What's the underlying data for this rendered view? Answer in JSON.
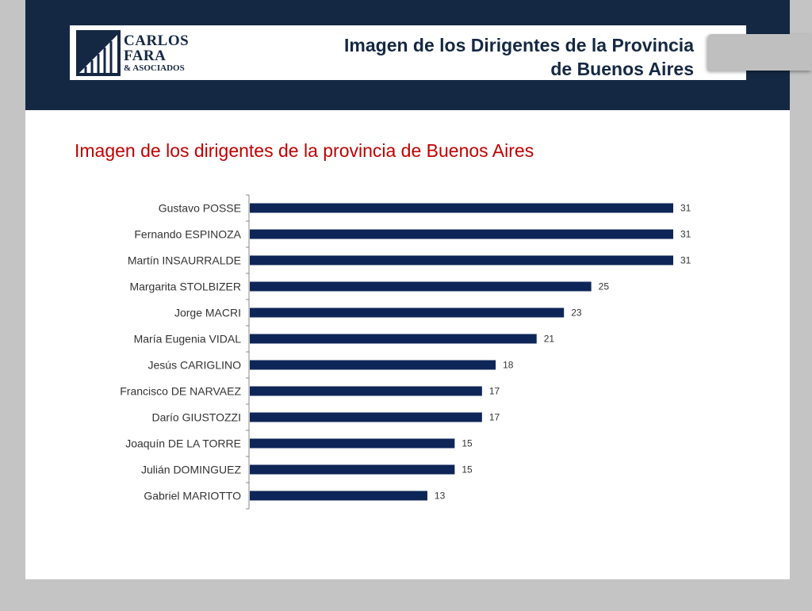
{
  "header": {
    "logo": {
      "line1": "CARLOS",
      "line2": "FARA",
      "line3": "& ASOCIADOS"
    },
    "title_line1": "Imagen de los Dirigentes de la Provincia",
    "title_line2": "de Buenos Aires"
  },
  "subtitle": "Imagen de los dirigentes de la provincia de Buenos Aires",
  "colors": {
    "header": "#152843",
    "bar": "#0e2557",
    "subtitle": "#c00000"
  },
  "chart_data": {
    "type": "bar",
    "orientation": "horizontal",
    "categories": [
      "Gustavo POSSE",
      "Fernando ESPINOZA",
      "Martín INSAURRALDE",
      "Margarita STOLBIZER",
      "Jorge MACRI",
      "María Eugenia VIDAL",
      "Jesús CARIGLINO",
      "Francisco DE NARVAEZ",
      "Darío GIUSTOZZI",
      "Joaquín DE LA TORRE",
      "Julián DOMINGUEZ",
      "Gabriel MARIOTTO"
    ],
    "values": [
      31,
      31,
      31,
      25,
      23,
      21,
      18,
      17,
      17,
      15,
      15,
      13
    ],
    "data_labels": [
      "31",
      "31",
      "31",
      "25",
      "23",
      "21",
      "18",
      "17",
      "17",
      "15",
      "15",
      "13"
    ],
    "xlim": [
      0,
      31
    ],
    "grid": false,
    "legend": "none"
  }
}
